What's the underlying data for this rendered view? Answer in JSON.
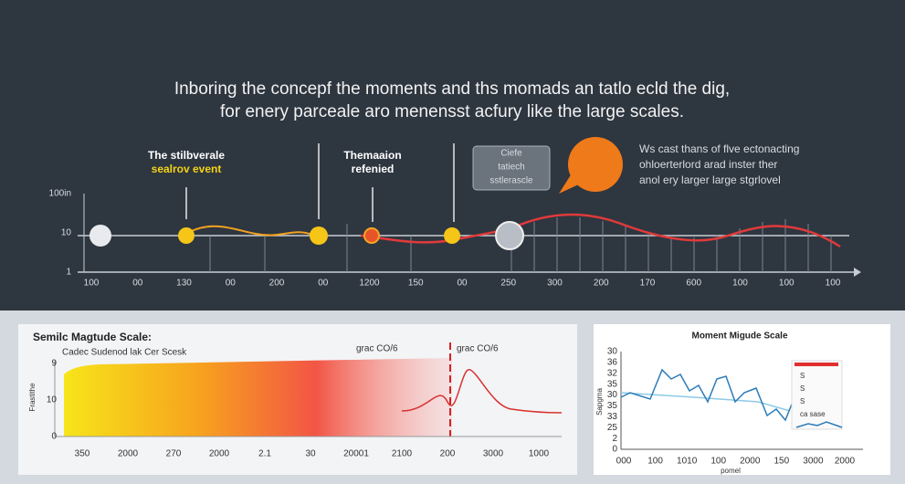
{
  "header": {
    "line1": "Inboring the concepf the moments and ths momads an tatlo ecld the dig,",
    "line2": "for enery parceale aro menensst acfury like the large scales."
  },
  "timeline": {
    "callouts": [
      {
        "line1": "The stilbverale",
        "line2": "sealrov event"
      },
      {
        "line1": "Themaaion",
        "line2": "refenied"
      },
      {
        "line1": "Ciefe",
        "line2": "tatiech",
        "line3": "sstlerascle"
      }
    ],
    "note": {
      "line1": "Ws cast thans of flve ectonacting",
      "line2": "ohloerterlord arad inster ther",
      "line3": "anol ery larger large stgrlovel"
    },
    "y_labels": [
      "100in",
      "10",
      "1"
    ],
    "x_labels": [
      "100",
      "00",
      "130",
      "00",
      "200",
      "00",
      "1200",
      "150",
      "00",
      "250",
      "300",
      "200",
      "170",
      "600",
      "100",
      "100",
      "100"
    ]
  },
  "left_panel": {
    "title": "Semilc Magtude Scale:",
    "subtitle": "Cadec Sudenod lak Cer Scesk",
    "annotations": [
      "grac CO/6",
      "grac CO/6"
    ],
    "y_axis_label": "Frastithe",
    "y_labels": [
      "9",
      "10",
      "0"
    ],
    "x_labels": [
      "350",
      "2000",
      "270",
      "2000",
      "2.1",
      "30",
      "20001",
      "2100",
      "200",
      "3000",
      "1000"
    ]
  },
  "right_panel": {
    "title": "Moment Migude Scale",
    "y_axis_label": "Sapgma",
    "x_axis_label": "pomel",
    "y_labels": [
      "30",
      "36",
      "32",
      "35",
      "30",
      "35",
      "33",
      "25",
      "2",
      "0"
    ],
    "x_labels": [
      "000",
      "100",
      "1010",
      "100",
      "2000",
      "150",
      "3000",
      "2000"
    ],
    "legend": [
      "S",
      "S",
      "S",
      "ca sase"
    ]
  }
}
